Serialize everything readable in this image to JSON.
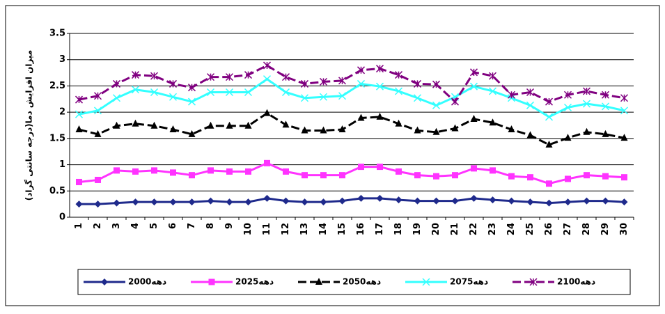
{
  "chart_data": {
    "type": "line",
    "y_label": "میزان افزایش دما(درجه سانتی گراد)",
    "categories": [
      "1",
      "2",
      "3",
      "4",
      "5",
      "6",
      "7",
      "8",
      "9",
      "10",
      "11",
      "12",
      "13",
      "14",
      "15",
      "16",
      "17",
      "18",
      "19",
      "20",
      "21",
      "22",
      "23",
      "24",
      "25",
      "26",
      "27",
      "28",
      "29",
      "30"
    ],
    "ylim": [
      0,
      3.5
    ],
    "yticks": [
      0,
      0.5,
      1,
      1.5,
      2,
      2.5,
      3,
      3.5
    ],
    "grid": true,
    "legend": "bottom",
    "series": [
      {
        "name": "دهه2000",
        "color": "#1f2a8c",
        "dash": false,
        "marker": "diamond",
        "values": [
          0.25,
          0.25,
          0.27,
          0.29,
          0.29,
          0.29,
          0.29,
          0.31,
          0.29,
          0.29,
          0.36,
          0.31,
          0.29,
          0.29,
          0.31,
          0.36,
          0.36,
          0.33,
          0.31,
          0.31,
          0.31,
          0.36,
          0.33,
          0.31,
          0.29,
          0.27,
          0.29,
          0.31,
          0.31,
          0.29
        ]
      },
      {
        "name": "دهه2025",
        "color": "#ff33ff",
        "dash": false,
        "marker": "square",
        "values": [
          0.67,
          0.71,
          0.89,
          0.87,
          0.89,
          0.85,
          0.8,
          0.89,
          0.87,
          0.87,
          1.03,
          0.87,
          0.8,
          0.8,
          0.8,
          0.96,
          0.96,
          0.87,
          0.8,
          0.78,
          0.8,
          0.93,
          0.89,
          0.78,
          0.76,
          0.64,
          0.73,
          0.8,
          0.78,
          0.76
        ]
      },
      {
        "name": "دهه2050",
        "color": "#000000",
        "dash": true,
        "marker": "triangle",
        "values": [
          1.67,
          1.58,
          1.74,
          1.78,
          1.74,
          1.67,
          1.58,
          1.74,
          1.74,
          1.74,
          1.98,
          1.76,
          1.65,
          1.65,
          1.67,
          1.89,
          1.91,
          1.78,
          1.65,
          1.62,
          1.69,
          1.87,
          1.8,
          1.67,
          1.56,
          1.38,
          1.51,
          1.62,
          1.58,
          1.51
        ]
      },
      {
        "name": "دهه2075",
        "color": "#33ffff",
        "dash": false,
        "marker": "x",
        "values": [
          1.96,
          2.03,
          2.27,
          2.43,
          2.38,
          2.29,
          2.2,
          2.38,
          2.38,
          2.38,
          2.63,
          2.38,
          2.27,
          2.29,
          2.31,
          2.54,
          2.49,
          2.4,
          2.27,
          2.13,
          2.29,
          2.49,
          2.4,
          2.27,
          2.13,
          1.91,
          2.09,
          2.16,
          2.11,
          2.03
        ]
      },
      {
        "name": "دهه2100",
        "color": "#800080",
        "dash": true,
        "marker": "asterisk",
        "values": [
          2.24,
          2.31,
          2.54,
          2.71,
          2.69,
          2.54,
          2.47,
          2.67,
          2.67,
          2.71,
          2.89,
          2.67,
          2.54,
          2.58,
          2.6,
          2.8,
          2.83,
          2.71,
          2.54,
          2.53,
          2.2,
          2.76,
          2.69,
          2.33,
          2.38,
          2.2,
          2.33,
          2.4,
          2.33,
          2.27
        ]
      }
    ]
  }
}
